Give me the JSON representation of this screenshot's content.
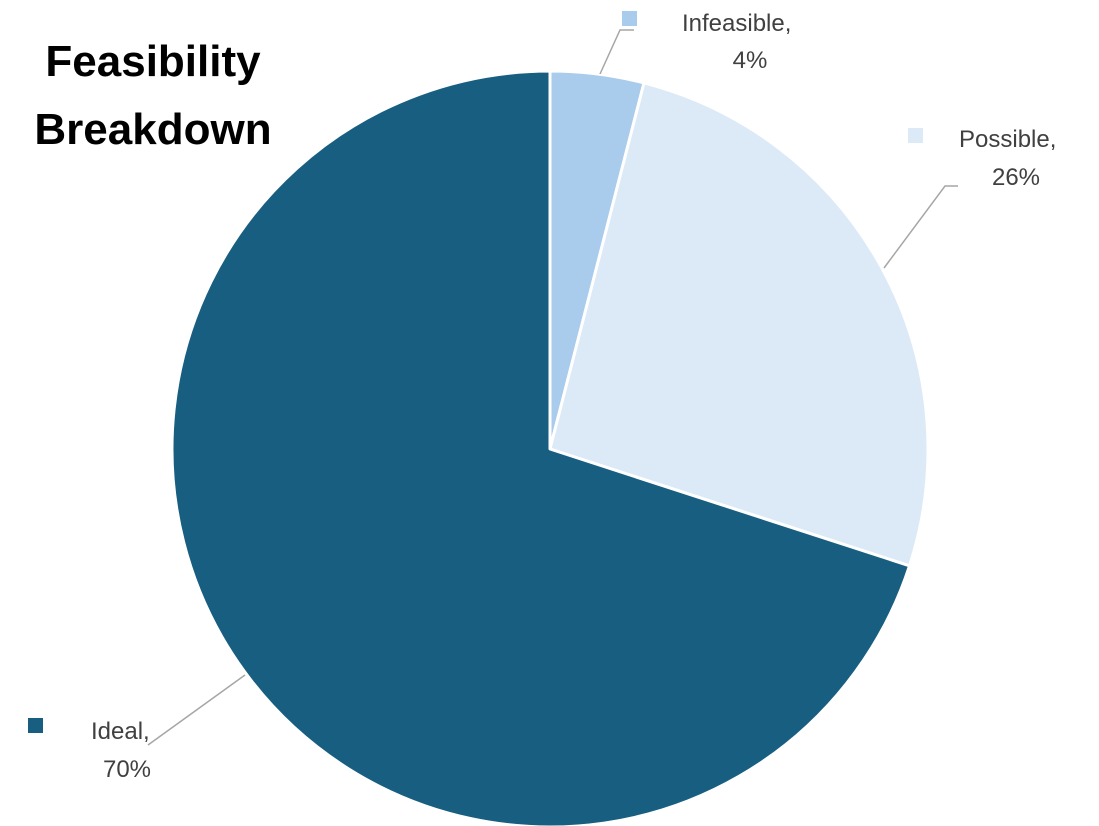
{
  "chart_data": {
    "type": "pie",
    "title": "Feasibility Breakdown",
    "title_lines": [
      "Feasibility",
      "Breakdown"
    ],
    "slices": [
      {
        "label": "Infeasible",
        "value": 4,
        "display": "4%",
        "color": "#a9cbec"
      },
      {
        "label": "Possible",
        "value": 26,
        "display": "26%",
        "color": "#dce9f6"
      },
      {
        "label": "Ideal",
        "value": 70,
        "display": "70%",
        "color": "#175e80"
      }
    ],
    "start": "12 o'clock",
    "direction": "clockwise",
    "data_labels": "category name and percentage with leader lines"
  }
}
